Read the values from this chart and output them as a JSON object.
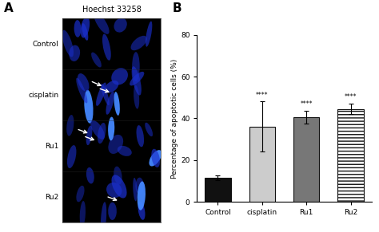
{
  "bar_categories": [
    "Control",
    "cisplatin",
    "Ru1",
    "Ru2"
  ],
  "bar_values": [
    11.5,
    36.0,
    40.5,
    44.5
  ],
  "bar_errors": [
    1.2,
    12.0,
    3.0,
    2.5
  ],
  "bar_colors": [
    "#111111",
    "#cccccc",
    "#777777",
    "#ffffff"
  ],
  "bar_hatches": [
    null,
    null,
    null,
    "----"
  ],
  "bar_edgecolors": [
    "#111111",
    "#111111",
    "#111111",
    "#111111"
  ],
  "significance": [
    "",
    "****",
    "****",
    "****"
  ],
  "ylabel": "Percentage of apoptotic cells (%)",
  "ylim": [
    0,
    80
  ],
  "yticks": [
    0,
    20,
    40,
    60,
    80
  ],
  "panel_a_label": "A",
  "panel_b_label": "B",
  "hoechst_title": "Hoechst 33258",
  "left_labels": [
    "Control",
    "cisplatin",
    "Ru1",
    "Ru2"
  ],
  "fig_bg": "#ffffff"
}
